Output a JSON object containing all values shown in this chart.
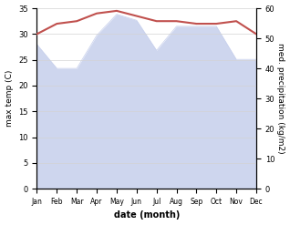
{
  "months": [
    "Jan",
    "Feb",
    "Mar",
    "Apr",
    "May",
    "Jun",
    "Jul",
    "Aug",
    "Sep",
    "Oct",
    "Nov",
    "Dec"
  ],
  "temp_max": [
    30.0,
    32.0,
    32.5,
    34.0,
    34.5,
    33.5,
    32.5,
    32.5,
    32.0,
    32.0,
    32.5,
    30.0
  ],
  "precip": [
    48.0,
    40.0,
    40.0,
    51.0,
    58.0,
    56.0,
    46.0,
    54.0,
    54.0,
    54.0,
    43.0,
    43.0
  ],
  "temp_color": "#c0504d",
  "precip_fill_color": "#c6cfec",
  "background_color": "#ffffff",
  "temp_ylim": [
    0,
    35
  ],
  "precip_ylim": [
    0,
    60
  ],
  "temp_yticks": [
    0,
    5,
    10,
    15,
    20,
    25,
    30,
    35
  ],
  "precip_yticks": [
    0,
    10,
    20,
    30,
    40,
    50,
    60
  ],
  "xlabel": "date (month)",
  "ylabel_left": "max temp (C)",
  "ylabel_right": "med. precipitation (kg/m2)"
}
